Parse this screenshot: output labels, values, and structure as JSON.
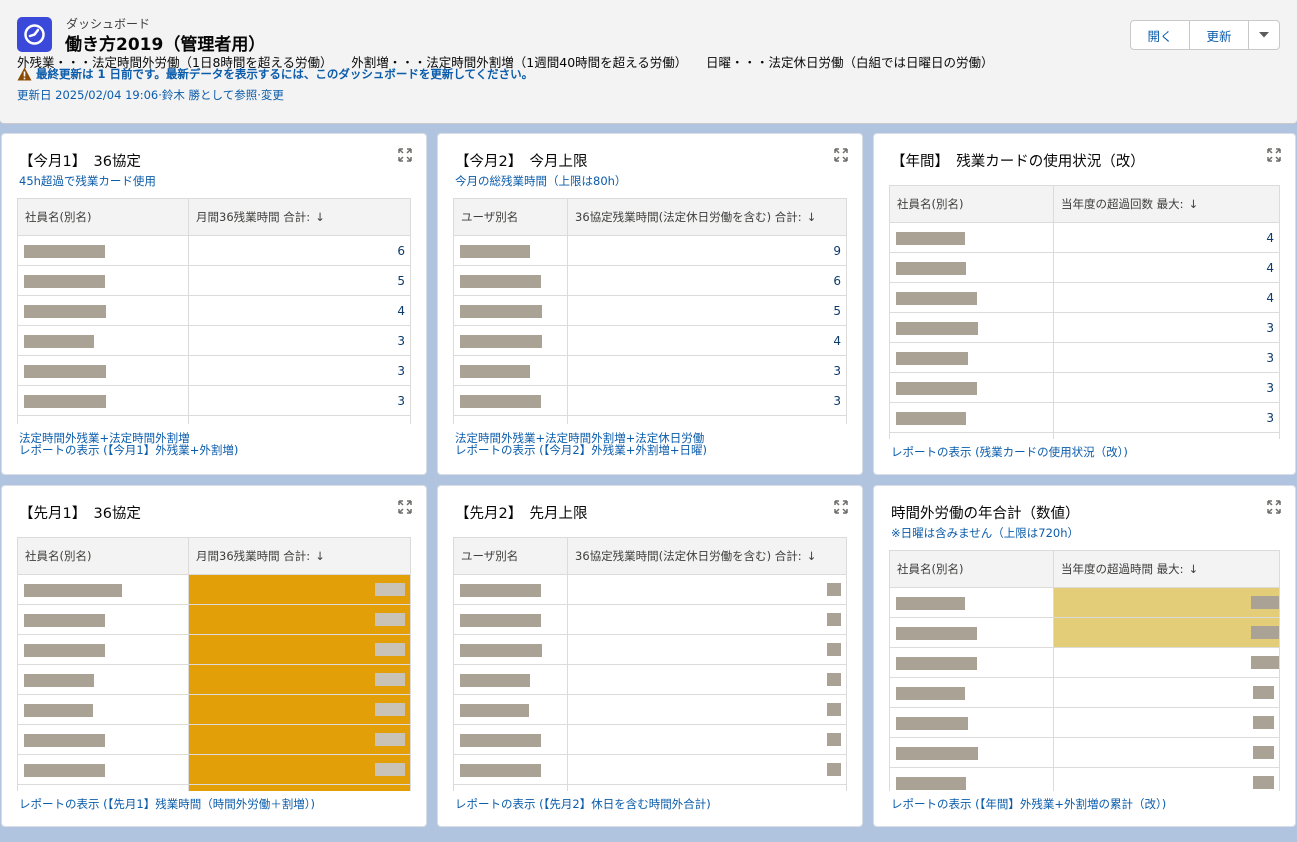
{
  "header": {
    "type_label": "ダッシュボード",
    "title": "働き方2019（管理者用）",
    "description": "外残業・・・法定時間外労働（1日8時間を超える労働）　　外割増・・・法定時間外割増（1週間40時間を超える労働）　　日曜・・・法定休日労働（白組では日曜日の労働）",
    "warning": "最終更新は 1 日前です。最新データを表示するには、このダッシュボードを更新してください。",
    "updated": "更新日 2025/02/04 19:06·鈴木 勝として参照·変更",
    "buttons": {
      "open": "開く",
      "refresh": "更新"
    },
    "icons": {
      "dashboard": "gauge-icon",
      "warning": "warning-icon",
      "more": "chevron-down-icon"
    }
  },
  "panels": [
    {
      "title": "【今月1】　36協定",
      "subtitle": "45h超過で残業カード使用",
      "columns": [
        "社員名(別名)",
        "月間36残業時間 合計:"
      ],
      "sort_arrow": "↓",
      "values": [
        "6",
        "5",
        "4",
        "3",
        "3",
        "3"
      ],
      "footer": [
        "法定時間外残業+法定時間外割増",
        "レポートの表示 (【今月1】外残業+外割増)"
      ]
    },
    {
      "title": "【今月2】　今月上限",
      "subtitle": "今月の総残業時間（上限は80h）",
      "columns": [
        "ユーザ別名",
        "36協定残業時間(法定休日労働を含む) 合計:"
      ],
      "sort_arrow": "↓",
      "values": [
        "9",
        "6",
        "5",
        "4",
        "3",
        "3"
      ],
      "footer": [
        "法定時間外残業+法定時間外割増+法定休日労働",
        "レポートの表示 (【今月2】外残業+外割増+日曜)"
      ]
    },
    {
      "title": "【年間】　残業カードの使用状況（改）",
      "subtitle": "",
      "columns": [
        "社員名(別名)",
        "当年度の超過回数 最大:"
      ],
      "sort_arrow": "↓",
      "values": [
        "4",
        "4",
        "4",
        "3",
        "3",
        "3",
        "3"
      ],
      "footer": [
        "レポートの表示 (残業カードの使用状況（改）)"
      ]
    },
    {
      "title": "【先月1】　36協定",
      "subtitle": "",
      "columns": [
        "社員名(別名)",
        "月間36残業時間 合計:"
      ],
      "sort_arrow": "↓",
      "values": [],
      "footer": [
        "レポートの表示 (【先月1】残業時間（時間外労働＋割増）)"
      ]
    },
    {
      "title": "【先月2】　先月上限",
      "subtitle": "",
      "columns": [
        "ユーザ別名",
        "36協定残業時間(法定休日労働を含む) 合計:"
      ],
      "sort_arrow": "↓",
      "values": [],
      "footer": [
        "レポートの表示 (【先月2】休日を含む時間外合計)"
      ]
    },
    {
      "title": "時間外労働の年合計（数値）",
      "subtitle": "※日曜は含みません（上限は720h）",
      "columns": [
        "社員名(別名)",
        "当年度の超過時間 最大:"
      ],
      "sort_arrow": "↓",
      "values": [],
      "footer": [
        "レポートの表示 (【年間】外残業+外割増の累計（改）)"
      ]
    }
  ],
  "colors": {
    "highlight_orange": "#e39f07",
    "highlight_yellow": "#e3cd78",
    "link_blue": "#0b5cab",
    "brand_icon": "#3a49da"
  }
}
